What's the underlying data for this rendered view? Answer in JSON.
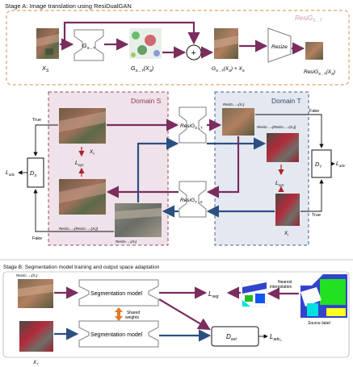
{
  "stage_a": {
    "title": "Stage A: Image translation using ResiDualGAN",
    "resi_label": "ResiG",
    "resi_sub": "S→T",
    "label_xs": "X",
    "label_xs_sub": "S",
    "gen_label": "G",
    "gen_sub": "S→T",
    "gen_out": "G",
    "gen_out_sub": "S→T",
    "gen_out_arg": "(X",
    "gen_out_arg_sub": "S",
    "gen_out_close": ")",
    "plus_symbol": "+",
    "sum_label": "G",
    "sum_sub": "S→T",
    "sum_rest": "(X",
    "sum_rest_sub": "S",
    "sum_tail": ") + X",
    "sum_tail_sub": "S",
    "resize_label": "Resize",
    "final_label": "ResiG",
    "final_sub": "S→T",
    "final_arg": "(X",
    "final_arg_sub": "S",
    "final_close": ")"
  },
  "middle": {
    "domain_s": "Domain S",
    "domain_t": "Domain T",
    "true_left": "True",
    "fake_left": "Fake",
    "fake_right": "Fake",
    "true_right": "True",
    "ds_label": "D",
    "ds_sub": "S",
    "dt_label": "D",
    "dt_sub": "T",
    "ladv_left": "L",
    "ladv_left_sub": "adv",
    "ladv_right": "L",
    "ladv_right_sub": "adv",
    "xs_label": "X",
    "xs_sub": "s",
    "lcyc_left": "L",
    "lcyc_left_sub": "cyc",
    "lcyc_right": "L",
    "lcyc_right_sub": "cyc",
    "xt_label": "X",
    "xt_sub": "t",
    "resi_st": "ResiG",
    "resi_st_sub": "S→T",
    "resi_ts": "ResiG",
    "resi_ts_sub": "T→S",
    "cap_top_t": "ResiGₛ→ₜ(Xₛ)",
    "cap_cycle_t": "ResiGₜ→ₛ(ResiGₛ→ₜ(Xₛ))",
    "cap_cycle_s": "ResiGₛ→ₜ(ResiGₜ→ₛ(Xₜ))",
    "cap_ts": "ResiGₜ→ₛ(Xₜ)"
  },
  "stage_b": {
    "title": "Stage B: Segmentation model training and output space adaptation",
    "input_top_caption": "ResiGₛ→ₜ(Xₛ)",
    "seg_top": "Segmentation model",
    "seg_bottom": "Segmentation model",
    "shared": "Shared",
    "weights": "weights",
    "lseg": "L",
    "lseg_sub": "seg",
    "nearest": "Nearest",
    "interp": "interpolation",
    "source_label": "Source label",
    "dout": "D",
    "dout_sub": "out",
    "ladvo": "L",
    "ladvo_sub": "adv",
    "ladvo_sub2": "o",
    "xt_caption": "X",
    "xt_caption_sub": "T"
  },
  "colors": {
    "purple": "#7b2d5e",
    "navy": "#2c4f82",
    "orange_dashed": "#d9a36a",
    "domain_s_fill": "#efe2ea",
    "domain_s_border": "#9a4a5a",
    "domain_t_fill": "#e4e8f0",
    "domain_t_border": "#4d5f8a"
  }
}
